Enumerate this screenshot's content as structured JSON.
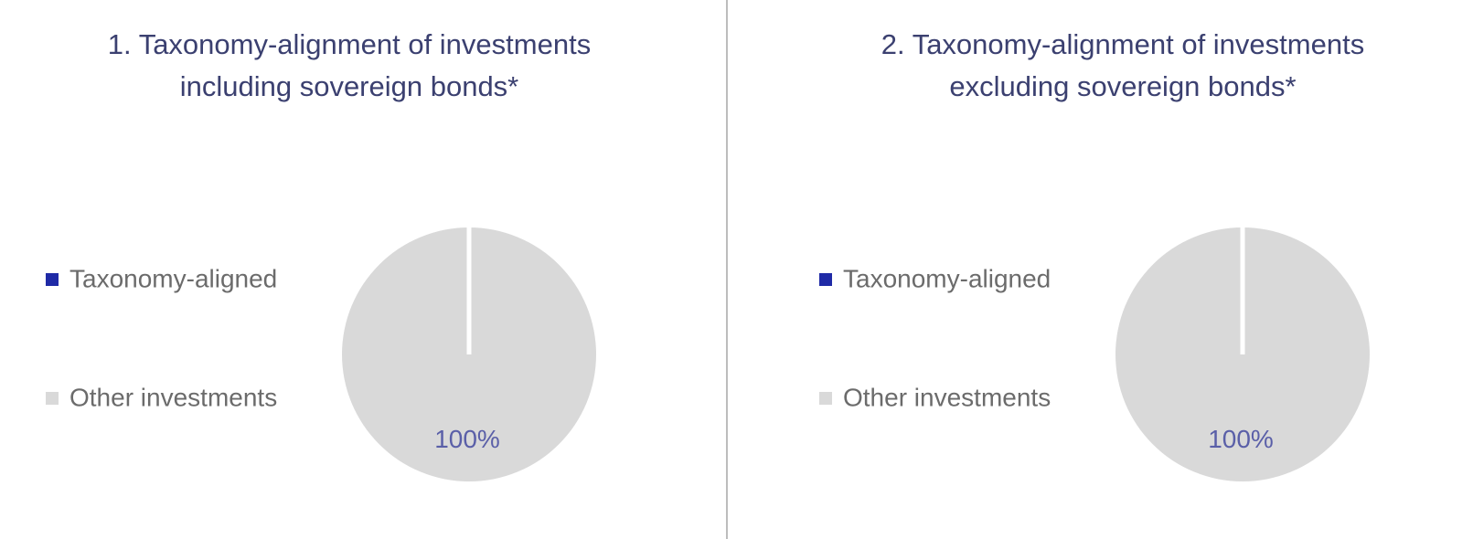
{
  "chart_data": [
    {
      "type": "pie",
      "title": "1. Taxonomy-alignment of investments including sovereign bonds*",
      "categories": [
        "Taxonomy-aligned",
        "Other investments"
      ],
      "values": [
        0,
        100
      ],
      "value_labels": [
        null,
        "100%"
      ],
      "colors": [
        "#1f2aa6",
        "#d9d9d9"
      ],
      "legend": "left"
    },
    {
      "type": "pie",
      "title": "2. Taxonomy-alignment of investments excluding sovereign bonds*",
      "categories": [
        "Taxonomy-aligned",
        "Other investments"
      ],
      "values": [
        0,
        100
      ],
      "value_labels": [
        null,
        "100%"
      ],
      "colors": [
        "#1f2aa6",
        "#d9d9d9"
      ],
      "legend": "left"
    }
  ]
}
